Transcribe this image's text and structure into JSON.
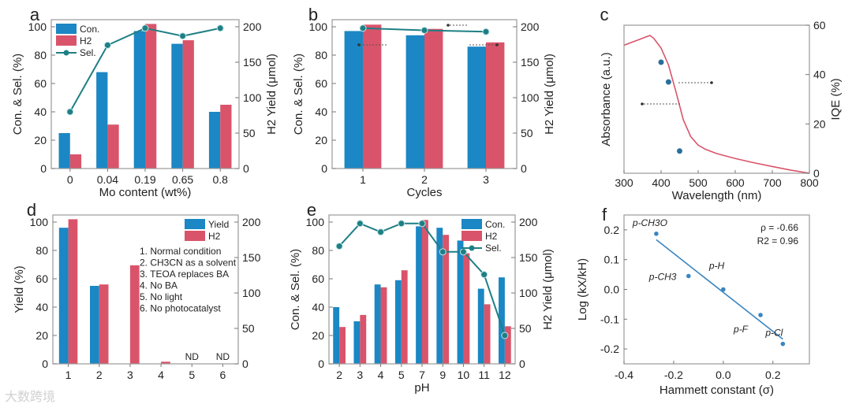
{
  "colors": {
    "blue": "#1b87c4",
    "red": "#d9546a",
    "teal": "#1e7f85",
    "fit": "#3a85c0",
    "curve": "#d9546a"
  },
  "watermark": "大数跨境",
  "chart_data": [
    {
      "panel": "a",
      "type": "bar",
      "xlabel": "Mo content (wt%)",
      "ylabel": "Con. & Sel. (%)",
      "y2label": "H2 Yield (μmol)",
      "categories": [
        "0",
        "0.04",
        "0.19",
        "0.65",
        "0.8"
      ],
      "ylim": [
        0,
        105
      ],
      "y2lim": [
        0,
        210
      ],
      "yticks": [
        "0",
        "20",
        "40",
        "60",
        "80",
        "100"
      ],
      "y2ticks": [
        "0",
        "50",
        "100",
        "150",
        "200"
      ],
      "series": [
        {
          "name": "Con.",
          "axis": "left",
          "kind": "bar",
          "values": [
            25,
            68,
            97,
            88,
            40
          ]
        },
        {
          "name": "H2",
          "axis": "right",
          "kind": "bar",
          "values": [
            20,
            62,
            204,
            181,
            90
          ]
        },
        {
          "name": "Sel.",
          "axis": "left",
          "kind": "line",
          "values": [
            40,
            87,
            99,
            93.5,
            99
          ]
        }
      ],
      "legend": [
        "Con.",
        "H2",
        "Sel."
      ],
      "legend_position": "top-left"
    },
    {
      "panel": "b",
      "type": "bar",
      "xlabel": "Cycles",
      "ylabel": "Con. & Sel. (%)",
      "y2label": "H2 Yield (μmol)",
      "categories": [
        "1",
        "2",
        "3"
      ],
      "ylim": [
        0,
        105
      ],
      "y2lim": [
        0,
        210
      ],
      "yticks": [
        "0",
        "20",
        "40",
        "60",
        "80",
        "100"
      ],
      "y2ticks": [
        "0",
        "50",
        "100",
        "150",
        "200"
      ],
      "series": [
        {
          "name": "Con.",
          "axis": "left",
          "kind": "bar",
          "values": [
            97,
            94,
            86
          ]
        },
        {
          "name": "H2",
          "axis": "right",
          "kind": "bar",
          "values": [
            203,
            197,
            178
          ]
        },
        {
          "name": "Sel.",
          "axis": "left",
          "kind": "line",
          "values": [
            99,
            97.5,
            96.5
          ]
        }
      ],
      "legend": []
    },
    {
      "panel": "c",
      "type": "line",
      "xlabel": "Wavelength (nm)",
      "ylabel": "Absorbance (a.u.)",
      "y2label": "IQE (%)",
      "xlim": [
        300,
        800
      ],
      "xticks": [
        "300",
        "400",
        "500",
        "600",
        "700",
        "800"
      ],
      "y2lim": [
        0,
        60
      ],
      "y2ticks": [
        "0",
        "20",
        "40",
        "60"
      ],
      "absorbance": {
        "x": [
          300,
          320,
          340,
          360,
          370,
          380,
          400,
          420,
          440,
          460,
          480,
          500,
          520,
          550,
          600,
          650,
          700,
          750,
          800
        ],
        "y": [
          0.91,
          0.93,
          0.95,
          0.97,
          0.98,
          0.96,
          0.89,
          0.77,
          0.58,
          0.38,
          0.26,
          0.2,
          0.17,
          0.14,
          0.105,
          0.075,
          0.048,
          0.022,
          0.0
        ]
      },
      "iqe": {
        "x": [
          400,
          420,
          450
        ],
        "y": [
          45,
          37,
          9
        ]
      }
    },
    {
      "panel": "d",
      "type": "bar",
      "xlabel": "",
      "ylabel": "Yield (%)",
      "y2label": "",
      "categories": [
        "1",
        "2",
        "3",
        "4",
        "5",
        "6"
      ],
      "ylim": [
        0,
        105
      ],
      "y2lim": [
        0,
        210
      ],
      "yticks": [
        "0",
        "20",
        "40",
        "60",
        "80",
        "100"
      ],
      "y2ticks": [
        "0",
        "50",
        "100",
        "150",
        "200"
      ],
      "series": [
        {
          "name": "Yield",
          "axis": "left",
          "kind": "bar",
          "values": [
            96,
            55,
            0,
            0,
            0,
            0
          ]
        },
        {
          "name": "H2",
          "axis": "right",
          "kind": "bar",
          "values": [
            204,
            112,
            139,
            3,
            0,
            0
          ]
        }
      ],
      "legend": [
        "Yield",
        "H2"
      ],
      "legend_position": "top-right",
      "annotations": [
        "ND",
        "ND"
      ],
      "conditions": [
        "1. Normal condition",
        "2. CH3CN as a solvent",
        "3. TEOA  replaces BA",
        "4. No BA",
        "5. No light",
        "6. No photocatalyst"
      ]
    },
    {
      "panel": "e",
      "type": "bar",
      "xlabel": "pH",
      "ylabel": "Con. & Sel. (%)",
      "y2label": "H2 Yield (μmol)",
      "categories": [
        "2",
        "3",
        "4",
        "5",
        "7",
        "9",
        "10",
        "11",
        "12"
      ],
      "ylim": [
        0,
        105
      ],
      "y2lim": [
        0,
        210
      ],
      "yticks": [
        "0",
        "20",
        "40",
        "60",
        "80",
        "100"
      ],
      "y2ticks": [
        "0",
        "50",
        "100",
        "150",
        "200"
      ],
      "series": [
        {
          "name": "Con.",
          "axis": "left",
          "kind": "bar",
          "values": [
            40,
            30,
            56,
            59,
            97,
            96,
            87,
            53,
            61
          ]
        },
        {
          "name": "H2",
          "axis": "right",
          "kind": "bar",
          "values": [
            52,
            69,
            108,
            132,
            203,
            182,
            156,
            84,
            53
          ]
        },
        {
          "name": "Sel.",
          "axis": "left",
          "kind": "line",
          "values": [
            83,
            99,
            93,
            99,
            99,
            79,
            79,
            63,
            20
          ]
        }
      ],
      "legend": [
        "Con.",
        "H2",
        "Sel."
      ],
      "legend_position": "top-right"
    },
    {
      "panel": "f",
      "type": "scatter",
      "xlabel": "Hammett constant (σ)",
      "ylabel": "Log (kX/kH)",
      "xlim": [
        -0.4,
        0.347
      ],
      "ylim": [
        -0.25,
        0.25
      ],
      "xticks": [
        "-0.4",
        "-0.2",
        "0.0",
        "0.2"
      ],
      "yticks": [
        "-0.2",
        "-0.1",
        "0.0",
        "0.1",
        "0.2"
      ],
      "points": [
        {
          "label": "p-CH3O",
          "x": -0.27,
          "y": 0.187
        },
        {
          "label": "p-CH3",
          "x": -0.14,
          "y": 0.045
        },
        {
          "label": "p-H",
          "x": 0.0,
          "y": 0.0
        },
        {
          "label": "p-F",
          "x": 0.15,
          "y": -0.086
        },
        {
          "label": "p-Cl",
          "x": 0.24,
          "y": -0.183
        }
      ],
      "fit": {
        "x": [
          -0.27,
          0.24
        ],
        "y": [
          0.167,
          -0.167
        ]
      },
      "stats": [
        "ρ = -0.66",
        "R2 = 0.96"
      ]
    }
  ]
}
